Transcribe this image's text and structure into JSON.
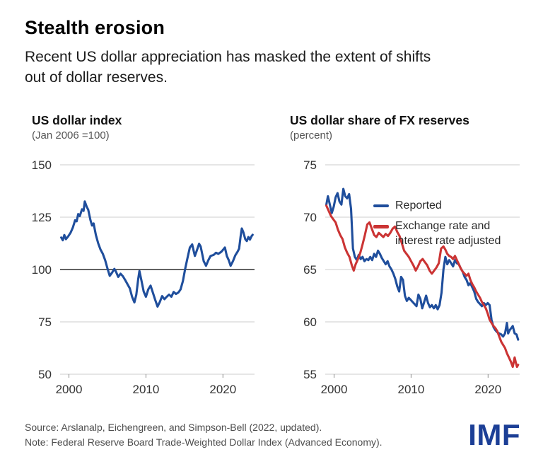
{
  "header": {
    "title": "Stealth erosion",
    "subtitle": "Recent US dollar appreciation has masked the extent of shifts out of dollar reserves.",
    "subtitle_lines": [
      "Recent US dollar appreciation has masked the extent of shifts",
      "out of dollar reserves."
    ]
  },
  "colors": {
    "line_blue": "#1f4e9c",
    "line_red": "#cb3434",
    "grid": "#cdcdcd",
    "refline": "#4c4c4c",
    "tick_text": "#333333",
    "logo_blue": "#1c3f96"
  },
  "footer": {
    "source": "Source: Arslanalp, Eichengreen, and Simpson-Bell (2022, updated).",
    "note": "Note: Federal Reserve Board Trade-Weighted Dollar Index (Advanced Economy).",
    "logo": "IMF"
  },
  "chart_data": [
    {
      "type": "line",
      "title": "US dollar index",
      "subtitle": "(Jan 2006 =100)",
      "xlabel": "",
      "ylabel": "",
      "xlim": [
        1998.85,
        2024.1
      ],
      "ylim": [
        50,
        150
      ],
      "yticks": [
        50,
        75,
        100,
        125,
        150
      ],
      "xticks": [
        2000,
        2010,
        2020
      ],
      "refline": 100,
      "grid": true,
      "legend_position": "none",
      "series": [
        {
          "name": "US dollar index",
          "color": "#1f4e9c",
          "x": [
            1999.0,
            1999.2,
            1999.4,
            1999.6,
            1999.9,
            2000.2,
            2000.5,
            2000.8,
            2001.0,
            2001.2,
            2001.4,
            2001.7,
            2001.9,
            2002.05,
            2002.3,
            2002.5,
            2002.8,
            2003.0,
            2003.2,
            2003.5,
            2003.8,
            2004.1,
            2004.4,
            2004.7,
            2005.0,
            2005.3,
            2005.6,
            2005.9,
            2006.1,
            2006.4,
            2006.7,
            2007.0,
            2007.3,
            2007.6,
            2007.9,
            2008.2,
            2008.5,
            2008.75,
            2009.0,
            2009.15,
            2009.4,
            2009.7,
            2010.0,
            2010.3,
            2010.6,
            2010.9,
            2011.2,
            2011.5,
            2011.8,
            2012.1,
            2012.4,
            2012.7,
            2013.0,
            2013.3,
            2013.6,
            2013.9,
            2014.2,
            2014.5,
            2014.8,
            2015.1,
            2015.4,
            2015.7,
            2016.0,
            2016.35,
            2016.6,
            2016.9,
            2017.1,
            2017.5,
            2017.8,
            2018.1,
            2018.4,
            2018.8,
            2019.1,
            2019.4,
            2019.8,
            2020.1,
            2020.25,
            2020.5,
            2020.75,
            2021.0,
            2021.3,
            2021.6,
            2021.9,
            2022.1,
            2022.3,
            2022.45,
            2022.65,
            2022.9,
            2023.1,
            2023.3,
            2023.5,
            2023.7,
            2023.85
          ],
          "y": [
            115.3,
            114.0,
            116.5,
            114.5,
            115.8,
            117.5,
            120.0,
            123.5,
            123.0,
            126.5,
            125.5,
            128.8,
            128.0,
            132.5,
            130.0,
            128.5,
            123.5,
            121.0,
            122.0,
            116.5,
            112.5,
            109.5,
            107.5,
            104.5,
            100.5,
            97.0,
            98.5,
            100.3,
            99.0,
            96.5,
            98.0,
            96.8,
            95.0,
            93.0,
            91.0,
            87.0,
            84.3,
            88.0,
            95.5,
            99.3,
            95.0,
            89.5,
            87.0,
            90.5,
            92.3,
            89.0,
            85.5,
            82.3,
            84.5,
            87.3,
            85.8,
            87.0,
            88.0,
            87.0,
            89.3,
            88.3,
            89.0,
            90.5,
            94.5,
            100.5,
            105.5,
            110.5,
            112.0,
            106.5,
            109.0,
            112.3,
            111.0,
            104.0,
            101.8,
            104.5,
            106.5,
            107.0,
            108.0,
            107.5,
            108.5,
            109.8,
            110.5,
            106.5,
            104.5,
            101.8,
            104.0,
            106.8,
            108.5,
            110.0,
            116.0,
            119.6,
            117.8,
            114.5,
            113.6,
            115.5,
            114.3,
            115.8,
            116.6
          ]
        }
      ]
    },
    {
      "type": "line",
      "title": "US dollar share of FX reserves",
      "subtitle": "(percent)",
      "xlabel": "",
      "ylabel": "",
      "xlim": [
        1998.85,
        2024.1
      ],
      "ylim": [
        55,
        75
      ],
      "yticks": [
        55,
        60,
        65,
        70,
        75
      ],
      "xticks": [
        2000,
        2010,
        2020
      ],
      "refline": null,
      "grid": true,
      "legend_position": "top-right",
      "series": [
        {
          "name": "Reported",
          "color": "#1f4e9c",
          "x": [
            1999.0,
            1999.2,
            1999.45,
            1999.7,
            1999.95,
            2000.2,
            2000.45,
            2000.7,
            2000.95,
            2001.2,
            2001.45,
            2001.7,
            2001.95,
            2002.2,
            2002.45,
            2002.7,
            2002.95,
            2003.2,
            2003.45,
            2003.7,
            2003.95,
            2004.2,
            2004.45,
            2004.7,
            2004.95,
            2005.2,
            2005.45,
            2005.7,
            2005.95,
            2006.2,
            2006.45,
            2006.7,
            2006.95,
            2007.2,
            2007.45,
            2007.7,
            2007.95,
            2008.2,
            2008.45,
            2008.7,
            2008.95,
            2009.2,
            2009.45,
            2009.7,
            2009.95,
            2010.2,
            2010.45,
            2010.7,
            2010.95,
            2011.2,
            2011.45,
            2011.7,
            2011.95,
            2012.2,
            2012.45,
            2012.7,
            2012.95,
            2013.2,
            2013.45,
            2013.7,
            2013.95,
            2014.2,
            2014.45,
            2014.7,
            2014.95,
            2015.2,
            2015.45,
            2015.7,
            2015.95,
            2016.2,
            2016.45,
            2016.7,
            2016.95,
            2017.2,
            2017.45,
            2017.7,
            2017.95,
            2018.2,
            2018.45,
            2018.7,
            2018.95,
            2019.2,
            2019.45,
            2019.7,
            2019.95,
            2020.2,
            2020.45,
            2020.7,
            2020.95,
            2021.2,
            2021.45,
            2021.7,
            2021.95,
            2022.2,
            2022.45,
            2022.6,
            2022.8,
            2023.0,
            2023.2,
            2023.45,
            2023.7,
            2023.9
          ],
          "y": [
            71.2,
            72.0,
            71.2,
            70.4,
            71.0,
            71.9,
            72.3,
            71.5,
            71.2,
            72.7,
            72.0,
            71.8,
            72.2,
            70.8,
            67.0,
            66.2,
            65.9,
            66.4,
            66.0,
            66.2,
            65.8,
            66.0,
            65.9,
            66.2,
            65.9,
            66.5,
            66.2,
            66.8,
            66.5,
            66.1,
            65.8,
            65.5,
            65.8,
            65.3,
            65.0,
            64.6,
            64.1,
            63.4,
            62.9,
            64.3,
            64.0,
            62.5,
            62.0,
            62.3,
            62.1,
            61.9,
            61.7,
            61.5,
            62.6,
            62.2,
            61.3,
            61.9,
            62.5,
            61.8,
            61.4,
            61.6,
            61.3,
            61.6,
            61.2,
            61.6,
            62.8,
            65.0,
            66.2,
            65.5,
            65.9,
            65.6,
            65.3,
            65.9,
            65.6,
            65.5,
            65.1,
            64.8,
            64.3,
            64.0,
            63.5,
            63.7,
            63.3,
            62.9,
            62.2,
            61.9,
            61.7,
            61.5,
            61.8,
            61.6,
            61.8,
            61.6,
            60.2,
            59.5,
            59.2,
            59.0,
            58.9,
            58.8,
            58.6,
            58.9,
            59.9,
            58.9,
            59.2,
            59.4,
            59.6,
            58.9,
            58.8,
            58.3
          ]
        },
        {
          "name": "Exchange rate and interest rate adjusted",
          "color": "#cb3434",
          "x": [
            1999.0,
            1999.3,
            1999.6,
            1999.9,
            2000.2,
            2000.5,
            2000.8,
            2001.1,
            2001.4,
            2001.7,
            2002.0,
            2002.3,
            2002.55,
            2002.8,
            2003.1,
            2003.4,
            2003.7,
            2004.0,
            2004.3,
            2004.6,
            2004.9,
            2005.2,
            2005.5,
            2005.8,
            2006.1,
            2006.4,
            2006.7,
            2007.0,
            2007.3,
            2007.6,
            2007.9,
            2008.2,
            2008.5,
            2008.8,
            2009.1,
            2009.4,
            2009.7,
            2010.0,
            2010.3,
            2010.6,
            2010.9,
            2011.2,
            2011.5,
            2011.8,
            2012.1,
            2012.4,
            2012.7,
            2013.0,
            2013.3,
            2013.6,
            2013.9,
            2014.2,
            2014.45,
            2014.7,
            2014.95,
            2015.2,
            2015.45,
            2015.7,
            2015.95,
            2016.2,
            2016.45,
            2016.7,
            2016.95,
            2017.2,
            2017.45,
            2017.7,
            2017.95,
            2018.2,
            2018.45,
            2018.7,
            2018.95,
            2019.2,
            2019.45,
            2019.7,
            2019.95,
            2020.2,
            2020.45,
            2020.7,
            2020.95,
            2021.2,
            2021.45,
            2021.7,
            2021.95,
            2022.2,
            2022.45,
            2022.7,
            2022.95,
            2023.2,
            2023.45,
            2023.6,
            2023.75,
            2023.9
          ],
          "y": [
            71.1,
            70.6,
            70.1,
            69.8,
            69.5,
            68.8,
            68.3,
            67.9,
            67.1,
            66.6,
            66.2,
            65.4,
            64.9,
            65.5,
            66.0,
            66.6,
            67.4,
            68.3,
            69.3,
            69.5,
            68.9,
            68.3,
            68.1,
            68.5,
            68.3,
            68.1,
            68.4,
            68.2,
            68.5,
            68.9,
            69.1,
            68.6,
            68.2,
            67.5,
            66.8,
            66.5,
            66.2,
            65.8,
            65.4,
            64.9,
            65.3,
            65.8,
            66.0,
            65.7,
            65.4,
            64.9,
            64.6,
            64.9,
            65.2,
            65.6,
            67.0,
            67.2,
            66.9,
            66.5,
            66.3,
            66.2,
            66.0,
            66.3,
            65.9,
            65.5,
            65.1,
            64.8,
            64.6,
            64.4,
            64.6,
            64.0,
            63.6,
            63.3,
            62.9,
            62.6,
            62.3,
            61.9,
            61.6,
            61.3,
            60.8,
            60.2,
            59.9,
            59.6,
            59.4,
            59.1,
            58.6,
            58.1,
            57.8,
            57.5,
            57.0,
            56.6,
            56.2,
            55.7,
            56.6,
            56.1,
            55.7,
            55.9
          ]
        }
      ]
    }
  ]
}
